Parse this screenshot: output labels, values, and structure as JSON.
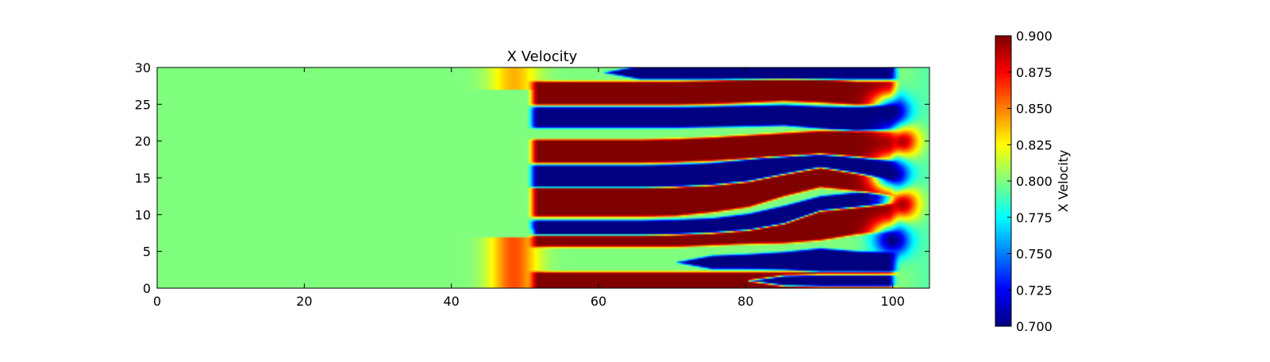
{
  "chart_data": {
    "type": "heatmap",
    "title": "X Velocity",
    "xlabel": "",
    "ylabel": "",
    "xlim": [
      0,
      105
    ],
    "ylim": [
      0,
      30
    ],
    "x_ticks": [
      0,
      20,
      40,
      60,
      80,
      100
    ],
    "y_ticks": [
      0,
      5,
      10,
      15,
      20,
      25,
      30
    ],
    "grid": false,
    "colormap": "jet",
    "colorbar": {
      "label": "X Velocity",
      "range": [
        0.7,
        0.9
      ],
      "ticks": [
        "0.700",
        "0.725",
        "0.750",
        "0.775",
        "0.800",
        "0.825",
        "0.850",
        "0.875",
        "0.900"
      ]
    },
    "field": {
      "background_value": 0.8,
      "front_x": 51,
      "layers": [
        {
          "value": 0.9,
          "x_range": [
            51,
            100
          ],
          "y_center": [
            1.0,
            1.0,
            1.0,
            1.0,
            1.0,
            1.0,
            1.0,
            1.0,
            1.0,
            1.0,
            1.0
          ],
          "half_width": [
            1.2,
            1.2,
            1.2,
            1.2,
            1.2,
            1.2,
            1.2,
            1.2,
            1.3,
            1.3,
            1.2
          ]
        },
        {
          "value": 0.7,
          "x_range": [
            72,
            100
          ],
          "y_center": [
            1.0,
            1.0,
            1.0,
            1.0,
            1.0,
            1.0,
            1.0,
            1.0,
            1.0,
            1.0,
            1.0
          ],
          "half_width": [
            0.0,
            0.0,
            0.0,
            0.0,
            0.0,
            0.0,
            0.0,
            0.7,
            0.8,
            0.8,
            0.8
          ]
        },
        {
          "value": 0.7,
          "x_range": [
            58,
            100
          ],
          "y_center": [
            3.5,
            3.5,
            3.5,
            3.5,
            3.5,
            3.5,
            3.6,
            3.7,
            3.8,
            3.6,
            3.5
          ],
          "half_width": [
            0.0,
            0.0,
            0.0,
            0.0,
            0.0,
            0.9,
            1.0,
            1.2,
            1.6,
            1.4,
            1.3
          ]
        },
        {
          "value": 0.9,
          "x_range": [
            51,
            100
          ],
          "y_center": [
            6.8,
            6.8,
            6.8,
            6.8,
            6.8,
            6.9,
            7.0,
            7.5,
            9.0,
            9.8,
            10.2
          ],
          "half_width": [
            1.2,
            1.2,
            1.2,
            1.2,
            1.2,
            1.1,
            1.0,
            1.4,
            2.5,
            2.5,
            2.5
          ]
        },
        {
          "value": 0.7,
          "x_range": [
            51,
            100
          ],
          "y_center": [
            8.2,
            8.2,
            8.2,
            8.2,
            8.3,
            8.5,
            9.0,
            10.0,
            11.5,
            12.0,
            12.5
          ],
          "half_width": [
            1.0,
            1.0,
            1.0,
            1.0,
            1.0,
            1.0,
            1.1,
            1.2,
            1.0,
            1.0,
            1.0
          ]
        },
        {
          "value": 0.9,
          "x_range": [
            51,
            100
          ],
          "y_center": [
            11.7,
            11.7,
            11.7,
            11.7,
            11.8,
            12.3,
            13.0,
            14.5,
            15.5,
            14.8,
            14.0
          ],
          "half_width": [
            2.0,
            2.0,
            2.0,
            2.0,
            2.0,
            2.0,
            2.0,
            2.0,
            1.8,
            1.6,
            1.5
          ]
        },
        {
          "value": 0.7,
          "x_range": [
            51,
            100
          ],
          "y_center": [
            15.2,
            15.2,
            15.2,
            15.2,
            15.3,
            15.5,
            16.0,
            17.0,
            18.0,
            17.3,
            16.5
          ],
          "half_width": [
            1.5,
            1.5,
            1.5,
            1.5,
            1.5,
            1.5,
            1.5,
            1.5,
            1.6,
            1.7,
            1.8
          ]
        },
        {
          "value": 0.9,
          "x_range": [
            51,
            100
          ],
          "y_center": [
            18.6,
            18.6,
            18.6,
            18.6,
            18.7,
            18.9,
            19.2,
            19.5,
            19.8,
            19.6,
            19.3
          ],
          "half_width": [
            1.6,
            1.6,
            1.6,
            1.6,
            1.6,
            1.6,
            1.6,
            1.6,
            1.6,
            1.8,
            2.0
          ]
        },
        {
          "value": 0.7,
          "x_range": [
            51,
            100
          ],
          "y_center": [
            23.2,
            23.2,
            23.2,
            23.2,
            23.2,
            23.3,
            23.4,
            23.5,
            23.2,
            23.0,
            23.2
          ],
          "half_width": [
            1.4,
            1.4,
            1.4,
            1.4,
            1.4,
            1.4,
            1.4,
            1.4,
            1.5,
            1.6,
            1.6
          ]
        },
        {
          "value": 0.9,
          "x_range": [
            51,
            100
          ],
          "y_center": [
            26.5,
            26.5,
            26.5,
            26.5,
            26.5,
            26.6,
            26.8,
            27.0,
            26.8,
            26.5,
            26.5
          ],
          "half_width": [
            1.6,
            1.6,
            1.6,
            1.6,
            1.6,
            1.6,
            1.6,
            1.6,
            1.6,
            1.6,
            1.6
          ]
        },
        {
          "value": 0.7,
          "x_range": [
            54,
            100
          ],
          "y_center": [
            29.3,
            29.3,
            29.3,
            29.3,
            29.3,
            29.3,
            29.3,
            29.3,
            29.3,
            29.3,
            29.3
          ],
          "half_width": [
            0.0,
            0.0,
            0.0,
            0.9,
            0.9,
            0.9,
            0.9,
            0.9,
            0.9,
            0.9,
            0.9
          ]
        }
      ],
      "outflow_bulges": [
        {
          "x": 101.5,
          "y": 20.0,
          "value": 0.9
        },
        {
          "x": 101.5,
          "y": 11.5,
          "value": 0.9
        },
        {
          "x": 100.0,
          "y": 6.5,
          "value": 0.7
        },
        {
          "x": 100.0,
          "y": 24.0,
          "value": 0.7
        },
        {
          "x": 100.0,
          "y": 15.5,
          "value": 0.7
        }
      ]
    }
  }
}
